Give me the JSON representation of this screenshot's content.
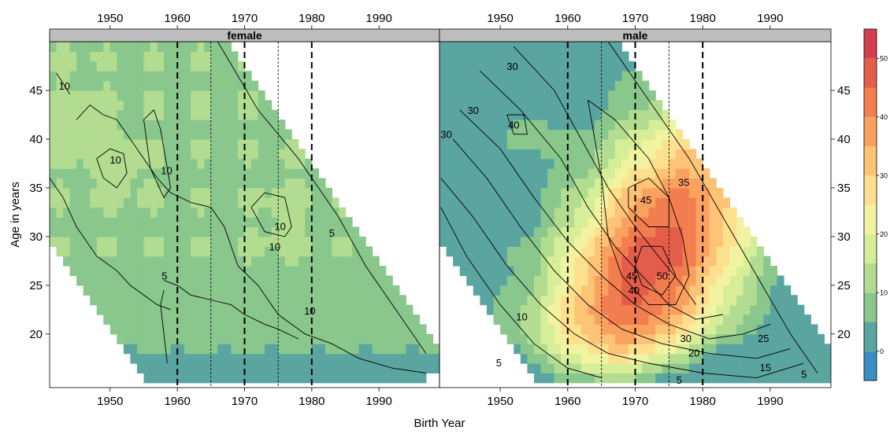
{
  "chart_data": {
    "type": "heatmap",
    "title": "",
    "xlabel": "Birth Year",
    "ylabel": "Age in years",
    "xlim": [
      1941,
      1999
    ],
    "ylim": [
      14.5,
      50
    ],
    "x_ticks": [
      "1950",
      "1960",
      "1970",
      "1980",
      "1990"
    ],
    "y_ticks": [
      "20",
      "25",
      "30",
      "35",
      "40",
      "45"
    ],
    "panels": [
      {
        "name": "female",
        "contour_labels": [
          {
            "label": "10",
            "x": 1943.2,
            "y": 45.5
          },
          {
            "label": "10",
            "x": 1950.8,
            "y": 37.9
          },
          {
            "label": "10",
            "x": 1958.4,
            "y": 36.8
          },
          {
            "label": "10",
            "x": 1975.3,
            "y": 31.1
          },
          {
            "label": "10",
            "x": 1974.5,
            "y": 29.0
          },
          {
            "label": "5",
            "x": 1983.0,
            "y": 30.4
          },
          {
            "label": "5",
            "x": 1958.1,
            "y": 26.0
          },
          {
            "label": "10",
            "x": 1979.7,
            "y": 22.4
          }
        ]
      },
      {
        "name": "male",
        "contour_labels": [
          {
            "label": "30",
            "x": 1951.8,
            "y": 47.5
          },
          {
            "label": "30",
            "x": 1946.0,
            "y": 43.0
          },
          {
            "label": "30",
            "x": 1942.0,
            "y": 40.5
          },
          {
            "label": "40",
            "x": 1952.0,
            "y": 41.5
          },
          {
            "label": "35",
            "x": 1977.2,
            "y": 35.6
          },
          {
            "label": "45",
            "x": 1971.6,
            "y": 33.8
          },
          {
            "label": "45",
            "x": 1969.5,
            "y": 26.0
          },
          {
            "label": "50",
            "x": 1974.0,
            "y": 26.0
          },
          {
            "label": "40",
            "x": 1969.8,
            "y": 24.5
          },
          {
            "label": "30",
            "x": 1977.5,
            "y": 19.6
          },
          {
            "label": "20",
            "x": 1978.7,
            "y": 18.1
          },
          {
            "label": "25",
            "x": 1989.0,
            "y": 19.6
          },
          {
            "label": "15",
            "x": 1989.3,
            "y": 16.6
          },
          {
            "label": "10",
            "x": 1953.2,
            "y": 21.8
          },
          {
            "label": "5",
            "x": 1949.8,
            "y": 17.1
          },
          {
            "label": "5",
            "x": 1976.5,
            "y": 15.3
          },
          {
            "label": "5",
            "x": 1995.0,
            "y": 15.9
          }
        ]
      }
    ],
    "reference_lines": [
      {
        "x": 1960,
        "style": "dashed"
      },
      {
        "x": 1965,
        "style": "dotted"
      },
      {
        "x": 1970,
        "style": "dashed"
      },
      {
        "x": 1975,
        "style": "dotted"
      },
      {
        "x": 1980,
        "style": "dashed"
      }
    ],
    "colorbar": {
      "range": [
        -5,
        55
      ],
      "levels": [
        -5,
        0,
        5,
        10,
        15,
        20,
        25,
        30,
        35,
        40,
        45,
        50,
        55
      ],
      "tick_labels": [
        "0",
        "10",
        "20",
        "30",
        "40",
        "50"
      ],
      "tick_values": [
        0,
        10,
        20,
        30,
        40,
        50
      ],
      "colors": [
        "#3a8ec3",
        "#5aa5a0",
        "#89c78c",
        "#b2dd91",
        "#d7ee98",
        "#f2f3a1",
        "#fde08e",
        "#fdc376",
        "#fba15f",
        "#f27e4f",
        "#e45d4a",
        "#d53e4e"
      ]
    }
  }
}
